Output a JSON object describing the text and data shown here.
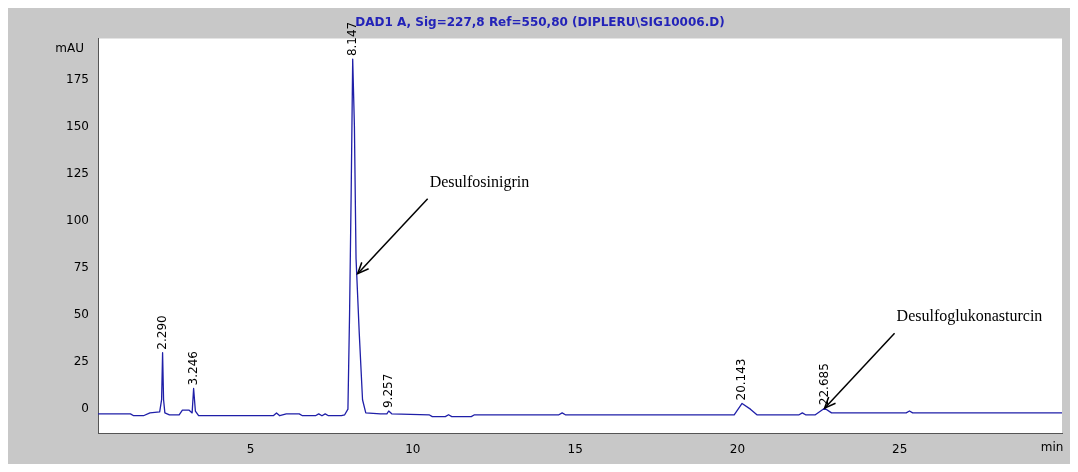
{
  "chart_data": {
    "type": "line",
    "title": "DAD1 A, Sig=227,8 Ref=550,80 (DIPLERU\\SIG10006.D)",
    "xlabel": "min",
    "ylabel": "mAU",
    "x": [
      0.3,
      1.3,
      1.4,
      1.7,
      1.9,
      2.2,
      2.26,
      2.29,
      2.32,
      2.36,
      2.5,
      2.8,
      2.9,
      3.1,
      3.2,
      3.246,
      3.3,
      3.4,
      5.7,
      5.8,
      5.9,
      6.1,
      6.5,
      6.6,
      7.0,
      7.1,
      7.2,
      7.3,
      7.4,
      7.8,
      7.9,
      8.0,
      8.05,
      8.1,
      8.147,
      8.2,
      8.25,
      8.35,
      8.45,
      8.55,
      9.0,
      9.2,
      9.257,
      9.35,
      10.5,
      10.6,
      11.0,
      11.1,
      11.2,
      11.8,
      11.9,
      14.5,
      14.6,
      14.7,
      19.9,
      20.143,
      20.4,
      20.6,
      21.9,
      22.0,
      22.1,
      22.4,
      22.685,
      22.9,
      25.2,
      25.3,
      25.4,
      30
    ],
    "series": [
      {
        "color": "#1f1fa8",
        "values": [
          -2.5,
          -2.5,
          -3.5,
          -3.5,
          -2,
          -1.5,
          5,
          30,
          5,
          -2,
          -3,
          -3,
          -0.5,
          -0.5,
          -2,
          11,
          -1,
          -3.5,
          -3.5,
          -2,
          -3.5,
          -2.5,
          -2.5,
          -3.5,
          -3.5,
          -2.5,
          -3.5,
          -2.5,
          -3.5,
          -3.5,
          -3,
          0,
          50,
          115,
          186,
          150,
          80,
          40,
          5,
          -2,
          -2.5,
          -2.5,
          -1,
          -2.5,
          -3,
          -4,
          -4,
          -3,
          -4,
          -4,
          -3,
          -3,
          -2,
          -3,
          -3,
          3,
          0,
          -3,
          -3,
          -2,
          -3,
          -3,
          0.5,
          -2,
          -2,
          -1,
          -2,
          -2
        ]
      }
    ],
    "xlim": [
      0.3,
      30
    ],
    "xticks": [
      5,
      10,
      15,
      20,
      25
    ],
    "ylim": [
      -13,
      197
    ],
    "yticks": [
      0,
      25,
      50,
      75,
      100,
      125,
      150,
      175
    ],
    "grid": false,
    "legend": false,
    "marker": "none",
    "line_style": "solid",
    "annotations": [
      {
        "text": "2.290",
        "x": 2.29,
        "y": 30
      },
      {
        "text": "3.246",
        "x": 3.246,
        "y": 11
      },
      {
        "text": "8.147",
        "x": 8.147,
        "y": 186
      },
      {
        "text": "9.257",
        "x": 9.257,
        "y": -1
      },
      {
        "text": "20.143",
        "x": 20.143,
        "y": 3
      },
      {
        "text": "22.685",
        "x": 22.685,
        "y": 0.5
      },
      {
        "text": "Desulfosinigrin",
        "x": 8.3,
        "y": 72
      },
      {
        "text": "Desulfoglukonasturcin",
        "x": 22.685,
        "y": 0.5
      }
    ]
  }
}
